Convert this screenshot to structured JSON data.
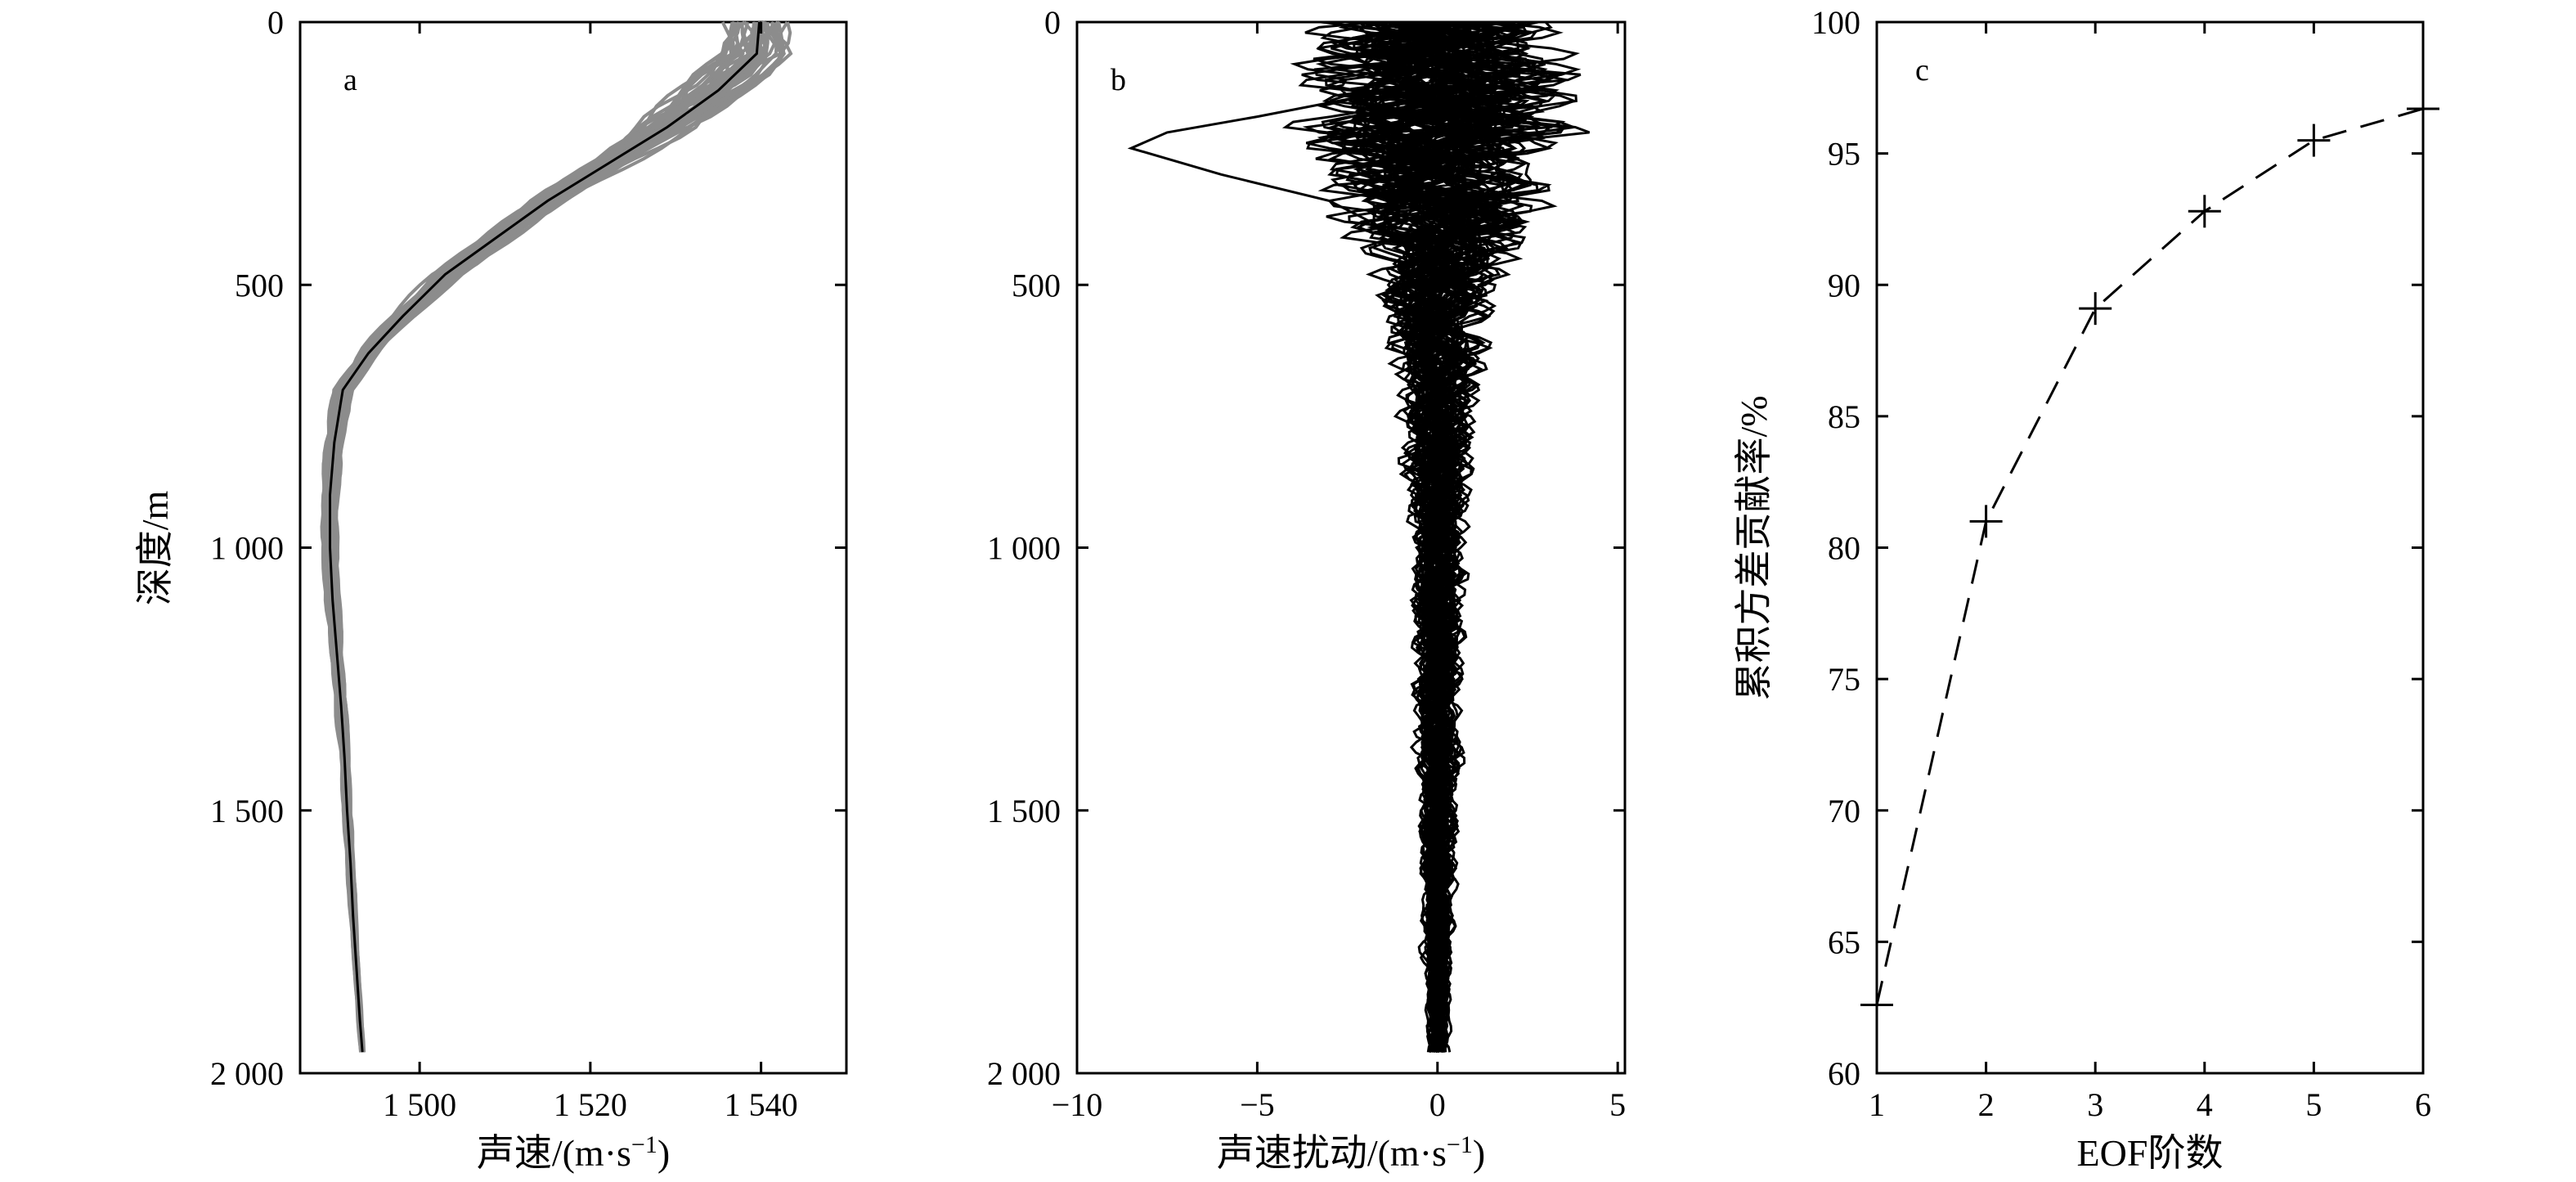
{
  "chart_data": [
    {
      "panel_label": "a",
      "type": "line",
      "xlabel": "声速/(m·s",
      "xlabel_sup": "−1",
      "xlabel_tail": ")",
      "ylabel": "深度/m",
      "xlim": [
        1486,
        1550
      ],
      "ylim": [
        2000,
        0
      ],
      "x_ticks": [
        1500,
        1520,
        1540
      ],
      "x_tick_labels": [
        "1 500",
        "1 520",
        "1 540"
      ],
      "y_ticks": [
        0,
        500,
        1000,
        1500,
        2000
      ],
      "y_tick_labels": [
        "0",
        "500",
        "1 000",
        "1 500",
        "2 000"
      ],
      "series": [
        {
          "role": "mean",
          "color": "#000000",
          "points": [
            [
              1539.8,
              0
            ],
            [
              1539.5,
              60
            ],
            [
              1535,
              130
            ],
            [
              1529,
              200
            ],
            [
              1522,
              270
            ],
            [
              1515,
              340
            ],
            [
              1509,
              410
            ],
            [
              1503,
              480
            ],
            [
              1498,
              560
            ],
            [
              1494,
              630
            ],
            [
              1491,
              700
            ],
            [
              1490,
              800
            ],
            [
              1489.5,
              900
            ],
            [
              1489.5,
              1000
            ],
            [
              1489.8,
              1100
            ],
            [
              1490.3,
              1200
            ],
            [
              1490.8,
              1300
            ],
            [
              1491.2,
              1400
            ],
            [
              1491.5,
              1500
            ],
            [
              1491.9,
              1600
            ],
            [
              1492.2,
              1700
            ],
            [
              1492.6,
              1800
            ],
            [
              1493,
              1900
            ],
            [
              1493.3,
              1960
            ]
          ]
        }
      ],
      "ensemble": {
        "color": "#8c8c8c",
        "count": 40,
        "spread": [
          [
            0,
            6
          ],
          [
            100,
            7
          ],
          [
            300,
            3.5
          ],
          [
            500,
            2.5
          ],
          [
            700,
            1.5
          ],
          [
            1000,
            1.3
          ],
          [
            1500,
            0.7
          ],
          [
            1960,
            0.3
          ]
        ]
      }
    },
    {
      "panel_label": "b",
      "type": "line",
      "xlabel": "声速扰动/(m·s",
      "xlabel_sup": "−1",
      "xlabel_tail": ")",
      "xlim": [
        -10,
        5.2
      ],
      "ylim": [
        2000,
        0
      ],
      "x_ticks": [
        -10,
        -5,
        0,
        5
      ],
      "x_tick_labels": [
        "−10",
        "−5",
        "0",
        "5"
      ],
      "y_ticks": [
        0,
        500,
        1000,
        1500,
        2000
      ],
      "y_tick_labels": [
        "0",
        "500",
        "1 000",
        "1 500",
        "2 000"
      ],
      "series": [
        {
          "role": "outlier-perturbation",
          "color": "#000000",
          "points": [
            [
              0,
              0
            ],
            [
              -0.5,
              60
            ],
            [
              -2,
              140
            ],
            [
              -5,
              180
            ],
            [
              -7.5,
              210
            ],
            [
              -8.5,
              240
            ],
            [
              -6,
              290
            ],
            [
              -3,
              340
            ],
            [
              -1,
              410
            ],
            [
              -0.5,
              500
            ],
            [
              -0.2,
              600
            ],
            [
              0.1,
              800
            ]
          ]
        }
      ],
      "ensemble": {
        "color": "#000000",
        "count": 70,
        "spread": [
          [
            0,
            4
          ],
          [
            100,
            4.5
          ],
          [
            250,
            4.5
          ],
          [
            400,
            3
          ],
          [
            500,
            2
          ],
          [
            700,
            1.3
          ],
          [
            1000,
            0.9
          ],
          [
            1400,
            0.7
          ],
          [
            1700,
            0.5
          ],
          [
            1960,
            0.3
          ]
        ]
      }
    },
    {
      "panel_label": "c",
      "type": "line",
      "xlabel": "EOF阶数",
      "ylabel": "累积方差贡献率/%",
      "xlim": [
        1,
        6
      ],
      "ylim": [
        60,
        100
      ],
      "x_ticks": [
        1,
        2,
        3,
        4,
        5,
        6
      ],
      "y_ticks": [
        60,
        65,
        70,
        75,
        80,
        85,
        90,
        95,
        100
      ],
      "marker": "plus",
      "line_style": "dashed",
      "series": [
        {
          "x": [
            1,
            2,
            3,
            4,
            5,
            6
          ],
          "values": [
            62.6,
            81.0,
            89.1,
            92.8,
            95.5,
            96.7
          ]
        }
      ]
    }
  ]
}
